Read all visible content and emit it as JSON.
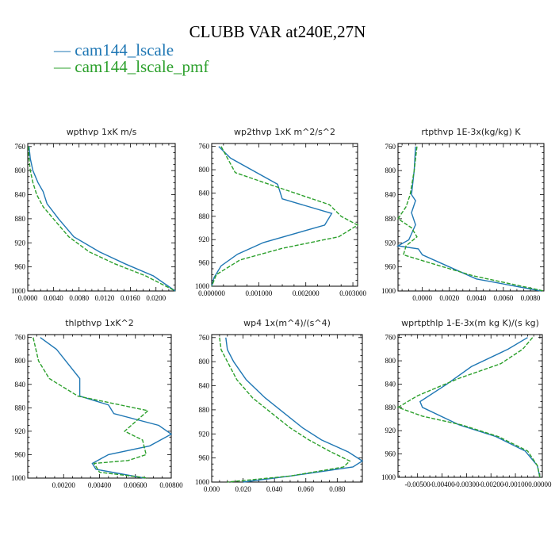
{
  "title": "CLUBB VAR at240E,27N",
  "legend": [
    {
      "label": "cam144_lscale",
      "color": "#1f77b4",
      "dash": "solid"
    },
    {
      "label": "cam144_lscale_pmf",
      "color": "#2ca02c",
      "dash": "dashed"
    }
  ],
  "chart_data": [
    {
      "type": "line",
      "title": "wpthvp   1xK m/s",
      "xlim": [
        0,
        0.023
      ],
      "ylim": [
        755,
        1000
      ],
      "y_inverted": true,
      "xticks": [
        0,
        0.004,
        0.008,
        0.012,
        0.016,
        0.02
      ],
      "xtick_labels": [
        "0.0000",
        "0.0040",
        "0.0080",
        "0.0120",
        "0.0160",
        "0.0200"
      ],
      "yticks": [
        760,
        800,
        840,
        880,
        920,
        960,
        1000
      ],
      "ytick_labels": [
        "760",
        "800",
        "840",
        "880",
        "920",
        "960",
        "1000"
      ],
      "series": [
        {
          "name": "cam144_lscale",
          "x": [
            0.0002,
            0.0004,
            0.0008,
            0.0016,
            0.0024,
            0.003,
            0.0048,
            0.0072,
            0.0112,
            0.0152,
            0.0196,
            0.023
          ],
          "y": [
            760,
            780,
            800,
            820,
            835,
            855,
            880,
            910,
            935,
            955,
            975,
            1000
          ]
        },
        {
          "name": "cam144_lscale_pmf",
          "x": [
            0.0001,
            0.0002,
            0.0004,
            0.0008,
            0.0014,
            0.0024,
            0.004,
            0.0064,
            0.0096,
            0.0136,
            0.0184,
            0.023
          ],
          "y": [
            760,
            780,
            800,
            820,
            840,
            860,
            880,
            910,
            935,
            955,
            975,
            1000
          ]
        }
      ]
    },
    {
      "type": "line",
      "title": "wp2thvp   1xK m^2/s^2",
      "xlim": [
        0,
        0.0031
      ],
      "ylim": [
        755,
        1000
      ],
      "y_inverted": true,
      "xticks": [
        0,
        0.001,
        0.002,
        0.003
      ],
      "xtick_labels": [
        "0.000000",
        "0.001000",
        "0.002000",
        "0.003000"
      ],
      "yticks": [
        760,
        800,
        840,
        880,
        920,
        960,
        1000
      ],
      "ytick_labels": [
        "760",
        "800",
        "840",
        "880",
        "920",
        "960",
        "1000"
      ],
      "series": [
        {
          "name": "cam144_lscale",
          "x": [
            0.00015,
            0.0004,
            0.0014,
            0.0015,
            0.00255,
            0.0024,
            0.0011,
            0.00055,
            0.0002,
            5e-05,
            0.0
          ],
          "y": [
            760,
            780,
            825,
            850,
            875,
            895,
            925,
            945,
            965,
            985,
            1000
          ]
        },
        {
          "name": "cam144_lscale_pmf",
          "x": [
            0.0002,
            0.0005,
            0.0014,
            0.0025,
            0.00275,
            0.0031,
            0.0027,
            0.0015,
            0.0006,
            0.0001,
            0.0
          ],
          "y": [
            760,
            805,
            830,
            860,
            880,
            895,
            915,
            935,
            955,
            980,
            1000
          ]
        }
      ]
    },
    {
      "type": "line",
      "title": "rtpthvp   1E-3x(kg/kg) K",
      "xlim": [
        -0.0018,
        0.009
      ],
      "ylim": [
        755,
        1000
      ],
      "y_inverted": true,
      "xticks": [
        0,
        0.002,
        0.004,
        0.006,
        0.008
      ],
      "xtick_labels": [
        "0.0000",
        "0.0020",
        "0.0040",
        "0.0060",
        "0.0080"
      ],
      "yticks": [
        760,
        800,
        840,
        880,
        920,
        960,
        1000
      ],
      "ytick_labels": [
        "760",
        "800",
        "840",
        "880",
        "920",
        "960",
        "1000"
      ],
      "series": [
        {
          "name": "cam144_lscale",
          "x": [
            -0.0005,
            -0.0006,
            -0.0008,
            -0.0005,
            -0.0008,
            -0.0005,
            -0.001,
            -0.0018,
            -0.0003,
            0.0,
            0.0015,
            0.004,
            0.0088
          ],
          "y": [
            760,
            800,
            840,
            850,
            870,
            890,
            915,
            925,
            930,
            940,
            955,
            980,
            1000
          ]
        },
        {
          "name": "cam144_lscale_pmf",
          "x": [
            -0.0004,
            -0.0006,
            -0.0009,
            -0.0012,
            -0.0018,
            -0.0008,
            -0.0004,
            -0.0012,
            -0.0014,
            0.0008,
            0.0038,
            0.009
          ],
          "y": [
            760,
            800,
            840,
            860,
            880,
            895,
            910,
            925,
            940,
            955,
            975,
            1000
          ]
        }
      ]
    },
    {
      "type": "line",
      "title": "thlpthvp   1xK^2",
      "xlim": [
        0,
        0.008
      ],
      "ylim": [
        755,
        1000
      ],
      "y_inverted": true,
      "xticks": [
        0.002,
        0.004,
        0.006,
        0.008
      ],
      "xtick_labels": [
        "0.00200",
        "0.00400",
        "0.00600",
        "0.00800"
      ],
      "yticks": [
        760,
        800,
        840,
        880,
        920,
        960,
        1000
      ],
      "ytick_labels": [
        "760",
        "800",
        "840",
        "880",
        "920",
        "960",
        "1000"
      ],
      "series": [
        {
          "name": "cam144_lscale",
          "x": [
            0.0007,
            0.0016,
            0.0029,
            0.0029,
            0.0045,
            0.0048,
            0.0073,
            0.008,
            0.0068,
            0.0045,
            0.0036,
            0.0038,
            0.0065
          ],
          "y": [
            760,
            780,
            830,
            860,
            875,
            890,
            910,
            925,
            945,
            960,
            975,
            985,
            1000
          ]
        },
        {
          "name": "cam144_lscale_pmf",
          "x": [
            0.0003,
            0.0006,
            0.0012,
            0.0028,
            0.0067,
            0.0054,
            0.0064,
            0.0066,
            0.0056,
            0.0037,
            0.004,
            0.0067
          ],
          "y": [
            760,
            800,
            830,
            860,
            885,
            920,
            935,
            960,
            970,
            975,
            990,
            1000
          ]
        }
      ]
    },
    {
      "type": "line",
      "title": "wp4   1x(m^4)/(s^4)",
      "xlim": [
        0,
        0.096
      ],
      "ylim": [
        755,
        1000
      ],
      "y_inverted": true,
      "xticks": [
        0.0,
        0.02,
        0.04,
        0.06,
        0.08
      ],
      "xtick_labels": [
        "0.000",
        "0.020",
        "0.040",
        "0.060",
        "0.080"
      ],
      "yticks": [
        760,
        800,
        840,
        880,
        920,
        960,
        1000
      ],
      "ytick_labels": [
        "760",
        "800",
        "840",
        "880",
        "920",
        "960",
        "1000"
      ],
      "series": [
        {
          "name": "cam144_lscale",
          "x": [
            0.009,
            0.01,
            0.014,
            0.022,
            0.034,
            0.046,
            0.058,
            0.07,
            0.087,
            0.096,
            0.09,
            0.05,
            0.02
          ],
          "y": [
            760,
            780,
            800,
            830,
            860,
            885,
            910,
            930,
            950,
            965,
            975,
            990,
            1000
          ]
        },
        {
          "name": "cam144_lscale_pmf",
          "x": [
            0.005,
            0.006,
            0.01,
            0.016,
            0.026,
            0.038,
            0.05,
            0.062,
            0.076,
            0.088,
            0.084,
            0.05,
            0.01
          ],
          "y": [
            760,
            780,
            800,
            830,
            860,
            885,
            910,
            930,
            950,
            965,
            975,
            990,
            1000
          ]
        }
      ]
    },
    {
      "type": "line",
      "title": "wprtpthlp   1-E-3x(m kg K)/(s kg)",
      "xlim": [
        -0.0058,
        0.0001
      ],
      "ylim": [
        755,
        1000
      ],
      "y_inverted": true,
      "xticks": [
        -0.005,
        -0.004,
        -0.003,
        -0.002,
        -0.001,
        0.0
      ],
      "xtick_labels": [
        "-0.00500",
        "-0.00400",
        "-0.00300",
        "-0.00200",
        "-0.00100",
        "0.00000"
      ],
      "yticks": [
        760,
        800,
        840,
        880,
        920,
        960,
        1000
      ],
      "ytick_labels": [
        "760",
        "800",
        "840",
        "880",
        "920",
        "960",
        "1000"
      ],
      "series": [
        {
          "name": "cam144_lscale",
          "x": [
            -0.0005,
            -0.0013,
            -0.0028,
            -0.0038,
            -0.0049,
            -0.0048,
            -0.0033,
            -0.0018,
            -0.0006,
            -0.0001,
            0.0
          ],
          "y": [
            760,
            780,
            810,
            840,
            870,
            880,
            910,
            930,
            955,
            980,
            1000
          ]
        },
        {
          "name": "cam144_lscale_pmf",
          "x": [
            -0.0003,
            -0.0007,
            -0.0016,
            -0.0033,
            -0.005,
            -0.0058,
            -0.0048,
            -0.0032,
            -0.0017,
            -0.0005,
            -0.0001,
            0.0
          ],
          "y": [
            760,
            780,
            805,
            830,
            860,
            880,
            895,
            910,
            930,
            955,
            980,
            1000
          ]
        }
      ]
    }
  ]
}
